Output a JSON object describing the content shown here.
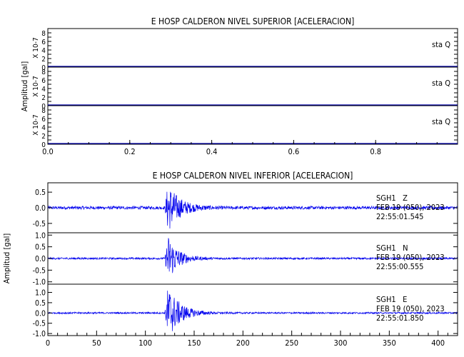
{
  "chart_data": [
    {
      "type": "line",
      "title": "E HOSP CALDERON NIVEL SUPERIOR [ACELERACION]",
      "ylabel": "Amplitud [gal]",
      "xlim": [
        0.0,
        1.0
      ],
      "x_ticks": [
        "0.0",
        "0.2",
        "0.4",
        "0.6",
        "0.8"
      ],
      "panels": [
        {
          "name": "sta Q",
          "scale_label": "X 10-7",
          "ylim": [
            0,
            9
          ],
          "y_ticks": [
            "0",
            "2",
            "4",
            "6",
            "8"
          ],
          "values": [
            0,
            0
          ]
        },
        {
          "name": "sta Q",
          "scale_label": "X 10-7",
          "ylim": [
            0,
            9
          ],
          "y_ticks": [
            "0",
            "2",
            "4",
            "6",
            "8"
          ],
          "values": [
            0,
            0
          ]
        },
        {
          "name": "sta Q",
          "scale_label": "X 10-7",
          "ylim": [
            0,
            9
          ],
          "y_ticks": [
            "0",
            "2",
            "4",
            "6",
            "8"
          ],
          "values": [
            0,
            0
          ]
        }
      ]
    },
    {
      "type": "line",
      "title": "E HOSP CALDERON NIVEL INFERIOR [ACELERACION]",
      "ylabel": "Amplitud [gal]",
      "xlim": [
        0,
        420
      ],
      "x_ticks": [
        "0",
        "50",
        "100",
        "150",
        "200",
        "250",
        "300",
        "350",
        "400"
      ],
      "panels": [
        {
          "name": "SGH1   Z",
          "date": "FEB 19 (050), 2023",
          "time": "22:55:01.545",
          "ylim": [
            -0.8,
            0.8
          ],
          "y_ticks": [
            "-0.5",
            "0.0",
            "0.5"
          ],
          "onset": 120,
          "peak": 0.72,
          "noise": 0.05,
          "decay": 12
        },
        {
          "name": "SGH1   N",
          "date": "FEB 19 (050), 2023",
          "time": "22:55:00.555",
          "ylim": [
            -1.1,
            1.1
          ],
          "y_ticks": [
            "-1.0",
            "-0.5",
            "0.0",
            "0.5",
            "1.0"
          ],
          "onset": 120,
          "peak": 0.95,
          "noise": 0.04,
          "decay": 10
        },
        {
          "name": "SGH1   E",
          "date": "FEB 19 (050), 2023",
          "time": "22:55:01.850",
          "ylim": [
            -1.1,
            1.4
          ],
          "y_ticks": [
            "-1.0",
            "-0.5",
            "0.0",
            "0.5",
            "1.0"
          ],
          "onset": 120,
          "peak": 1.25,
          "noise": 0.04,
          "decay": 12
        }
      ]
    }
  ]
}
